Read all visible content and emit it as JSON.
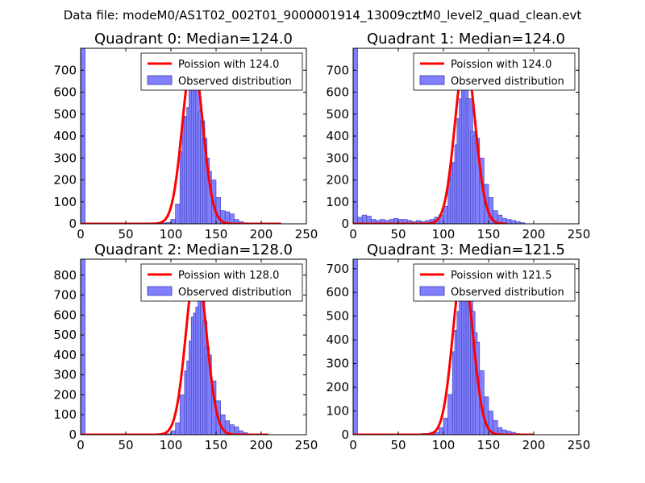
{
  "figure": {
    "suptitle": "Data file: modeM0/AS1T02_002T01_9000001914_13009cztM0_level2_quad_clean.evt"
  },
  "colors": {
    "bar_fill": "#8080ff",
    "bar_edge": "#3a3ab0",
    "poisson_line": "#ff0000",
    "frame": "#000000",
    "background": "#ffffff"
  },
  "chart_data": [
    {
      "type": "bar",
      "title": "Quadrant 0: Median=124.0",
      "legend": [
        "Poission with 124.0",
        "Observed distribution"
      ],
      "legend_position": "top-right",
      "xlim": [
        0,
        250
      ],
      "ylim": [
        0,
        800
      ],
      "xticks": [
        0,
        50,
        100,
        150,
        200,
        250
      ],
      "yticks": [
        0,
        100,
        200,
        300,
        400,
        500,
        600,
        700
      ],
      "bin_width": 5,
      "bins": [
        [
          0,
          800
        ],
        [
          65,
          2
        ],
        [
          70,
          3
        ],
        [
          75,
          2
        ],
        [
          80,
          4
        ],
        [
          85,
          3
        ],
        [
          90,
          4
        ],
        [
          95,
          6
        ],
        [
          100,
          20
        ],
        [
          105,
          90
        ],
        [
          110,
          330
        ],
        [
          112.5,
          480
        ],
        [
          115,
          490
        ],
        [
          117.5,
          530
        ],
        [
          120,
          610
        ],
        [
          122.5,
          680
        ],
        [
          125,
          650
        ],
        [
          127.5,
          640
        ],
        [
          130,
          510
        ],
        [
          132.5,
          470
        ],
        [
          135,
          390
        ],
        [
          137.5,
          300
        ],
        [
          140,
          240
        ],
        [
          145,
          200
        ],
        [
          150,
          120
        ],
        [
          155,
          60
        ],
        [
          160,
          55
        ],
        [
          165,
          45
        ],
        [
          170,
          20
        ],
        [
          175,
          10
        ],
        [
          180,
          5
        ],
        [
          185,
          3
        ],
        [
          190,
          2
        ],
        [
          195,
          2
        ],
        [
          200,
          2
        ]
      ],
      "poisson_mean": 124.0,
      "poisson_peak": 760,
      "poisson_sigma": 11.2,
      "poisson_xrange": [
        0,
        222
      ]
    },
    {
      "type": "bar",
      "title": "Quadrant 1: Median=124.0",
      "legend": [
        "Poission with 124.0",
        "Observed distribution"
      ],
      "legend_position": "top-right",
      "xlim": [
        0,
        250
      ],
      "ylim": [
        0,
        800
      ],
      "xticks": [
        0,
        50,
        100,
        150,
        200,
        250
      ],
      "yticks": [
        0,
        100,
        200,
        300,
        400,
        500,
        600,
        700
      ],
      "bin_width": 5,
      "bins": [
        [
          0,
          800
        ],
        [
          5,
          30
        ],
        [
          10,
          40
        ],
        [
          15,
          35
        ],
        [
          20,
          20
        ],
        [
          25,
          15
        ],
        [
          30,
          20
        ],
        [
          35,
          15
        ],
        [
          40,
          20
        ],
        [
          45,
          25
        ],
        [
          50,
          20
        ],
        [
          55,
          20
        ],
        [
          60,
          15
        ],
        [
          65,
          10
        ],
        [
          70,
          15
        ],
        [
          75,
          10
        ],
        [
          80,
          15
        ],
        [
          85,
          20
        ],
        [
          90,
          30
        ],
        [
          95,
          40
        ],
        [
          100,
          80
        ],
        [
          105,
          210
        ],
        [
          107.5,
          280
        ],
        [
          110,
          280
        ],
        [
          112.5,
          360
        ],
        [
          115,
          480
        ],
        [
          117.5,
          570
        ],
        [
          120,
          680
        ],
        [
          122.5,
          650
        ],
        [
          125,
          570
        ],
        [
          127.5,
          570
        ],
        [
          130,
          420
        ],
        [
          132.5,
          400
        ],
        [
          135,
          390
        ],
        [
          140,
          300
        ],
        [
          145,
          180
        ],
        [
          150,
          120
        ],
        [
          155,
          60
        ],
        [
          160,
          40
        ],
        [
          165,
          25
        ],
        [
          170,
          20
        ],
        [
          175,
          15
        ],
        [
          180,
          10
        ],
        [
          185,
          5
        ]
      ],
      "poisson_mean": 124.0,
      "poisson_peak": 760,
      "poisson_sigma": 11.2,
      "poisson_xrange": [
        0,
        170
      ]
    },
    {
      "type": "bar",
      "title": "Quadrant 2: Median=128.0",
      "legend": [
        "Poission with 128.0",
        "Observed distribution"
      ],
      "legend_position": "top-right",
      "xlim": [
        0,
        250
      ],
      "ylim": [
        0,
        880
      ],
      "xticks": [
        0,
        50,
        100,
        150,
        200,
        250
      ],
      "yticks": [
        0,
        100,
        200,
        300,
        400,
        500,
        600,
        700,
        800
      ],
      "bin_width": 5,
      "bins": [
        [
          0,
          880
        ],
        [
          80,
          2
        ],
        [
          85,
          3
        ],
        [
          90,
          4
        ],
        [
          95,
          5
        ],
        [
          100,
          20
        ],
        [
          105,
          60
        ],
        [
          110,
          200
        ],
        [
          115,
          320
        ],
        [
          117.5,
          370
        ],
        [
          120,
          470
        ],
        [
          122.5,
          590
        ],
        [
          125,
          610
        ],
        [
          127.5,
          640
        ],
        [
          130,
          750
        ],
        [
          132.5,
          690
        ],
        [
          135,
          570
        ],
        [
          137.5,
          440
        ],
        [
          140,
          400
        ],
        [
          145,
          270
        ],
        [
          150,
          170
        ],
        [
          155,
          100
        ],
        [
          160,
          70
        ],
        [
          165,
          50
        ],
        [
          170,
          40
        ],
        [
          175,
          20
        ],
        [
          180,
          10
        ],
        [
          185,
          5
        ],
        [
          190,
          3
        ],
        [
          195,
          2
        ],
        [
          200,
          2
        ]
      ],
      "poisson_mean": 128.0,
      "poisson_peak": 850,
      "poisson_sigma": 11.3,
      "poisson_xrange": [
        0,
        208
      ]
    },
    {
      "type": "bar",
      "title": "Quadrant 3: Median=121.5",
      "legend": [
        "Poission with 121.5",
        "Observed distribution"
      ],
      "legend_position": "top-right",
      "xlim": [
        0,
        250
      ],
      "ylim": [
        0,
        740
      ],
      "xticks": [
        0,
        50,
        100,
        150,
        200,
        250
      ],
      "yticks": [
        0,
        100,
        200,
        300,
        400,
        500,
        600,
        700
      ],
      "bin_width": 5,
      "bins": [
        [
          0,
          740
        ],
        [
          60,
          2
        ],
        [
          65,
          3
        ],
        [
          70,
          3
        ],
        [
          75,
          5
        ],
        [
          80,
          5
        ],
        [
          85,
          10
        ],
        [
          90,
          10
        ],
        [
          95,
          30
        ],
        [
          100,
          70
        ],
        [
          105,
          170
        ],
        [
          110,
          350
        ],
        [
          112.5,
          440
        ],
        [
          115,
          520
        ],
        [
          117.5,
          570
        ],
        [
          120,
          610
        ],
        [
          122.5,
          710
        ],
        [
          125,
          650
        ],
        [
          127.5,
          610
        ],
        [
          130,
          520
        ],
        [
          132.5,
          430
        ],
        [
          135,
          390
        ],
        [
          140,
          270
        ],
        [
          145,
          160
        ],
        [
          150,
          100
        ],
        [
          155,
          60
        ],
        [
          160,
          30
        ],
        [
          165,
          20
        ],
        [
          170,
          15
        ],
        [
          175,
          10
        ],
        [
          180,
          5
        ],
        [
          185,
          3
        ],
        [
          190,
          2
        ],
        [
          195,
          2
        ]
      ],
      "poisson_mean": 121.5,
      "poisson_peak": 710,
      "poisson_sigma": 11.0,
      "poisson_xrange": [
        0,
        200
      ]
    }
  ]
}
